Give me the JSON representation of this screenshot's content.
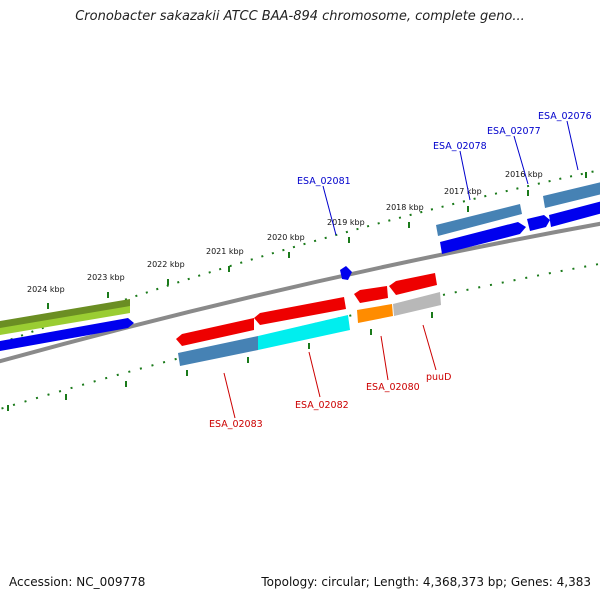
{
  "title": "Cronobacter sakazakii ATCC BAA-894 chromosome, complete geno...",
  "footer": {
    "accession": "Accession: NC_009778",
    "summary": "Topology: circular; Length: 4,368,373 bp; Genes: 4,383"
  },
  "colors": {
    "backbone": "#888888",
    "tick": "#1a7a1a",
    "label_forward": "#0000cc",
    "label_reverse": "#cc0000",
    "steel_blue": "#4682b4",
    "blue": "#0000ee",
    "red": "#ee0000",
    "cyan": "#00eeee",
    "orange": "#ff8c00",
    "gray": "#b8b8b8",
    "olive": "#6b8e23",
    "yellow_green": "#9acd32"
  },
  "scale": {
    "unit": "kbp",
    "labels": [
      "2016 kbp",
      "2017 kbp",
      "2018 kbp",
      "2019 kbp",
      "2020 kbp",
      "2021 kbp",
      "2022 kbp",
      "2023 kbp",
      "2024 kbp"
    ]
  },
  "forward_genes": [
    "ESA_02076",
    "ESA_02077",
    "ESA_02078",
    "ESA_02081"
  ],
  "reverse_genes": [
    "puuD",
    "ESA_02080",
    "ESA_02082",
    "ESA_02083"
  ]
}
